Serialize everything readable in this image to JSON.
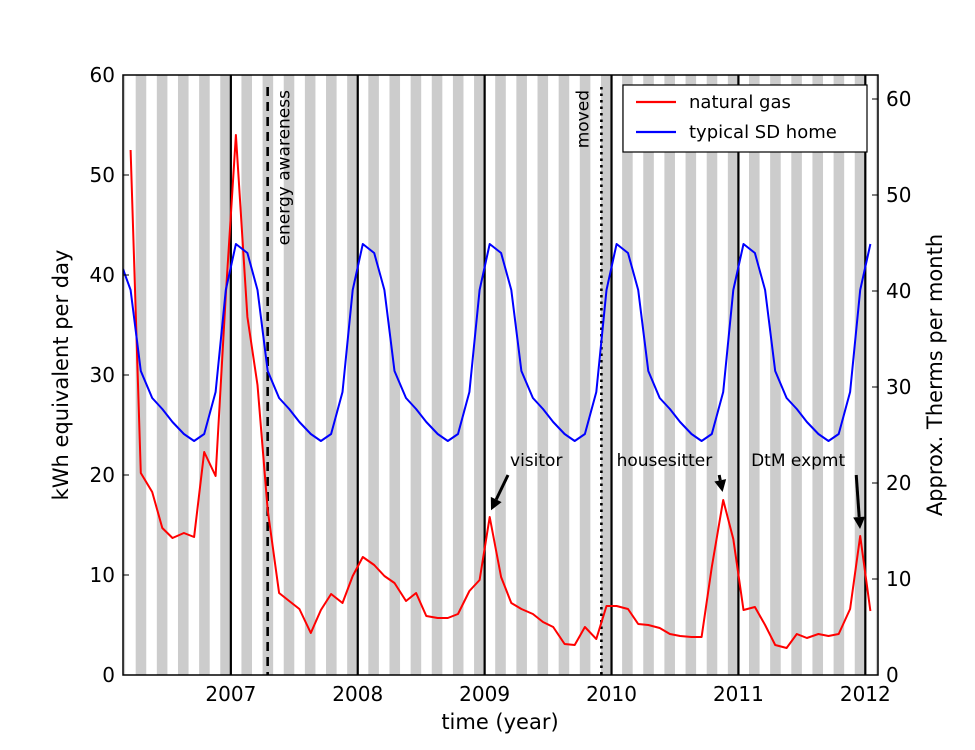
{
  "chart_data": {
    "type": "line",
    "xlabel": "time (year)",
    "ylabel": "kWh equivalent per day",
    "ylabel_right": "Approx. Therms per month",
    "xlim": [
      2006.15,
      2012.1
    ],
    "ylim": [
      0,
      60
    ],
    "ylim_right": [
      0,
      62.5
    ],
    "x_ticks": [
      2007,
      2008,
      2009,
      2010,
      2011,
      2012
    ],
    "y_ticks": [
      0,
      10,
      20,
      30,
      40,
      50,
      60
    ],
    "y_ticks_right": [
      0,
      10,
      20,
      30,
      40,
      50,
      60
    ],
    "background": "alternating grey/white vertical month bands",
    "year_lines": [
      2007,
      2008,
      2009,
      2010,
      2011,
      2012
    ],
    "legend_position": "top-right",
    "series": [
      {
        "name": "natural gas",
        "color": "#ff0000",
        "x": [
          2006.21,
          2006.29,
          2006.38,
          2006.46,
          2006.54,
          2006.63,
          2006.71,
          2006.79,
          2006.88,
          2006.96,
          2007.04,
          2007.13,
          2007.21,
          2007.29,
          2007.38,
          2007.46,
          2007.54,
          2007.63,
          2007.71,
          2007.79,
          2007.88,
          2007.96,
          2008.04,
          2008.13,
          2008.21,
          2008.29,
          2008.38,
          2008.46,
          2008.54,
          2008.63,
          2008.71,
          2008.79,
          2008.88,
          2008.96,
          2009.04,
          2009.13,
          2009.21,
          2009.29,
          2009.38,
          2009.46,
          2009.54,
          2009.63,
          2009.71,
          2009.79,
          2009.88,
          2009.96,
          2010.04,
          2010.13,
          2010.21,
          2010.29,
          2010.38,
          2010.46,
          2010.54,
          2010.63,
          2010.71,
          2010.79,
          2010.88,
          2010.96,
          2011.04,
          2011.13,
          2011.21,
          2011.29,
          2011.38,
          2011.46,
          2011.54,
          2011.63,
          2011.71,
          2011.79,
          2011.88,
          2011.96,
          2012.04
        ],
        "y": [
          52.5,
          20.2,
          18.3,
          14.7,
          13.7,
          14.2,
          13.8,
          22.3,
          19.9,
          38.0,
          54.0,
          35.8,
          29.0,
          16.5,
          8.2,
          7.4,
          6.6,
          4.2,
          6.5,
          8.1,
          7.2,
          9.9,
          11.8,
          11.0,
          9.9,
          9.2,
          7.4,
          8.2,
          5.9,
          5.7,
          5.7,
          6.1,
          8.4,
          9.5,
          15.8,
          9.8,
          7.2,
          6.6,
          6.1,
          5.3,
          4.8,
          3.1,
          3.0,
          4.8,
          3.6,
          6.9,
          6.9,
          6.6,
          5.1,
          5.0,
          4.7,
          4.1,
          3.9,
          3.8,
          3.8,
          10.8,
          17.5,
          13.6,
          6.5,
          6.8,
          5.0,
          3.0,
          2.7,
          4.1,
          3.7,
          4.1,
          3.9,
          4.1,
          6.6,
          13.9,
          6.4
        ]
      },
      {
        "name": "typical SD home",
        "color": "#0000ff",
        "x": [
          2006.15,
          2006.21,
          2006.29,
          2006.38,
          2006.46,
          2006.54,
          2006.63,
          2006.71,
          2006.79,
          2006.88,
          2006.96,
          2007.04,
          2007.13,
          2007.21,
          2007.29,
          2007.38,
          2007.46,
          2007.54,
          2007.63,
          2007.71,
          2007.79,
          2007.88,
          2007.96,
          2008.04,
          2008.13,
          2008.21,
          2008.29,
          2008.38,
          2008.46,
          2008.54,
          2008.63,
          2008.71,
          2008.79,
          2008.88,
          2008.96,
          2009.04,
          2009.13,
          2009.21,
          2009.29,
          2009.38,
          2009.46,
          2009.54,
          2009.63,
          2009.71,
          2009.79,
          2009.88,
          2009.96,
          2010.04,
          2010.13,
          2010.21,
          2010.29,
          2010.38,
          2010.46,
          2010.54,
          2010.63,
          2010.71,
          2010.79,
          2010.88,
          2010.96,
          2011.04,
          2011.13,
          2011.21,
          2011.29,
          2011.38,
          2011.46,
          2011.54,
          2011.63,
          2011.71,
          2011.79,
          2011.88,
          2011.96,
          2012.04
        ],
        "y": [
          40.6,
          38.5,
          30.4,
          27.7,
          26.6,
          25.3,
          24.1,
          23.4,
          24.1,
          28.3,
          38.5,
          43.1,
          42.2,
          38.5,
          30.4,
          27.7,
          26.6,
          25.3,
          24.1,
          23.4,
          24.1,
          28.3,
          38.5,
          43.1,
          42.2,
          38.5,
          30.4,
          27.7,
          26.6,
          25.3,
          24.1,
          23.4,
          24.1,
          28.3,
          38.5,
          43.1,
          42.2,
          38.5,
          30.4,
          27.7,
          26.6,
          25.3,
          24.1,
          23.4,
          24.1,
          28.3,
          38.5,
          43.1,
          42.2,
          38.5,
          30.4,
          27.7,
          26.6,
          25.3,
          24.1,
          23.4,
          24.1,
          28.3,
          38.5,
          43.1,
          42.2,
          38.5,
          30.4,
          27.7,
          26.6,
          25.3,
          24.1,
          23.4,
          24.1,
          28.3,
          38.5,
          43.1
        ]
      }
    ],
    "vertical_markers": [
      {
        "x": 2007.29,
        "label": "energy awareness",
        "style": "dashed"
      },
      {
        "x": 2009.92,
        "label": "moved",
        "style": "dotted"
      }
    ],
    "annotations": [
      {
        "text": "visitor",
        "point": [
          2009.04,
          15.8
        ],
        "text_at": [
          2009.2,
          20.9
        ]
      },
      {
        "text": "housesitter",
        "point": [
          2010.88,
          17.6
        ],
        "text_at": [
          2010.04,
          20.9
        ]
      },
      {
        "text": "DtM expmt",
        "point": [
          2011.96,
          13.9
        ],
        "text_at": [
          2011.1,
          20.9
        ]
      }
    ]
  }
}
